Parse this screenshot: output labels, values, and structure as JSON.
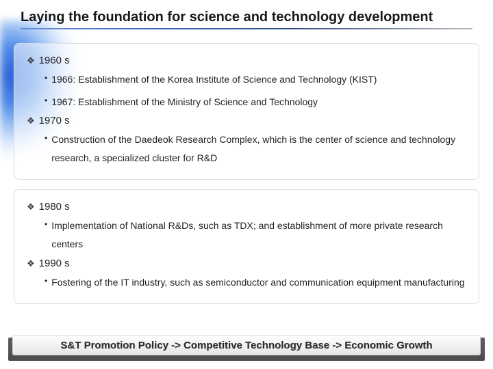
{
  "title": "Laying the foundation for science and technology development",
  "box1": {
    "d1": {
      "label": "1960 s",
      "b1": "1966: Establishment of the Korea Institute of Science and Technology (KIST)",
      "b2": "1967: Establishment of the Ministry of Science and Technology"
    },
    "d2": {
      "label": "1970 s",
      "b1": "Construction of the Daedeok Research Complex, which is the center of science and  technology research, a specialized cluster for R&D"
    }
  },
  "box2": {
    "d1": {
      "label": "1980 s",
      "b1": "Implementation of National R&Ds, such as TDX; and establishment of more private research centers"
    },
    "d2": {
      "label": "1990 s",
      "b1": "Fostering of the IT industry, such as semiconductor and communication equipment manufacturing"
    }
  },
  "footer": "S&T Promotion Policy -> Competitive Technology Base -> Economic Growth",
  "colors": {
    "diamond": "#3a3a3a",
    "text": "#222222",
    "underline_start": "#6b8fd6",
    "underline_mid": "#2e4a88",
    "box_border": "#d8dce5",
    "footer_band": "#4b4b4d"
  }
}
